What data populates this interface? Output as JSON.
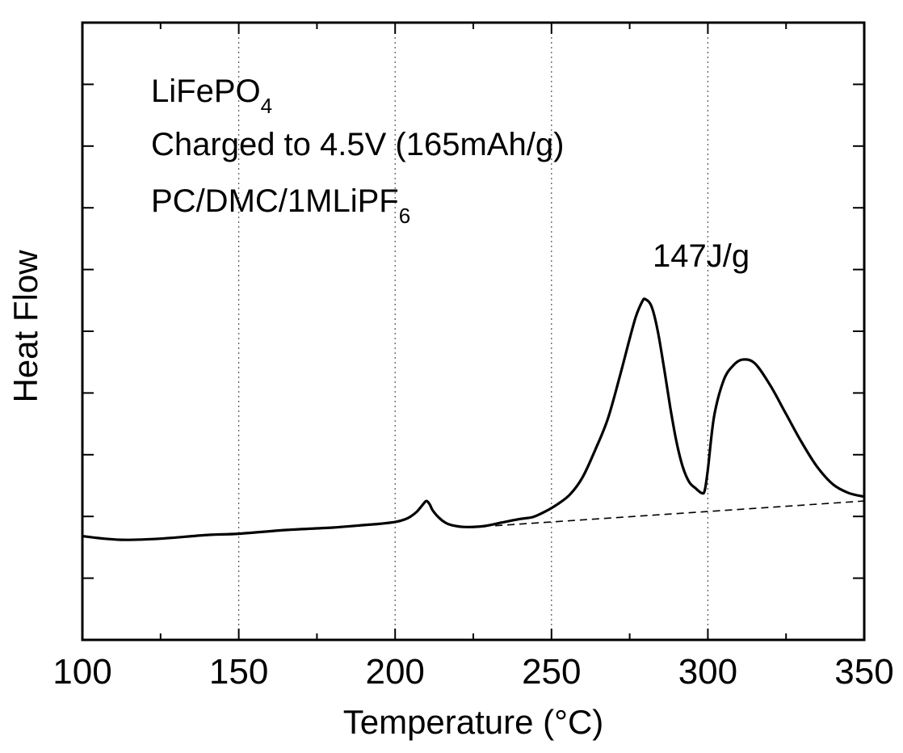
{
  "chart_data": {
    "type": "line",
    "xlabel": "Temperature (°C)",
    "ylabel": "Heat Flow",
    "xlim": [
      100,
      350
    ],
    "ylim": [
      0,
      10
    ],
    "xticks": [
      100,
      150,
      200,
      250,
      300,
      350
    ],
    "y_ticks_count": 10,
    "x_minor_ticks": [
      125,
      175,
      225,
      275,
      325
    ],
    "grid": "vertical dotted at 150, 200, 250, 300",
    "annotations": {
      "line1_main": "LiFePO",
      "line1_sub": "4",
      "line2": "Charged to 4.5V (165mAh/g)",
      "line3_main": "PC/DMC/1MLiPF",
      "line3_sub": "6",
      "peak_label": "147J/g"
    },
    "series": [
      {
        "style": "solid",
        "x": [
          100,
          107,
          114,
          125,
          140,
          150,
          165,
          180,
          190,
          195,
          200,
          203,
          205,
          207,
          209,
          210,
          211,
          212,
          214,
          216,
          218,
          222,
          228,
          234,
          240,
          244,
          248,
          252,
          256,
          260,
          264,
          268,
          272,
          275,
          277,
          279,
          280,
          282,
          284,
          286,
          288,
          290,
          292,
          294,
          296,
          298,
          299,
          300,
          302,
          305,
          308,
          311,
          315,
          320,
          325,
          330,
          335,
          340,
          345,
          350
        ],
        "y": [
          1.68,
          1.64,
          1.62,
          1.64,
          1.7,
          1.72,
          1.78,
          1.82,
          1.86,
          1.88,
          1.91,
          1.95,
          2.0,
          2.08,
          2.2,
          2.25,
          2.2,
          2.1,
          1.98,
          1.9,
          1.86,
          1.83,
          1.84,
          1.9,
          1.96,
          1.99,
          2.08,
          2.2,
          2.36,
          2.64,
          3.08,
          3.58,
          4.3,
          4.88,
          5.24,
          5.48,
          5.52,
          5.4,
          5.0,
          4.4,
          3.76,
          3.2,
          2.8,
          2.56,
          2.46,
          2.38,
          2.42,
          2.76,
          3.62,
          4.2,
          4.44,
          4.54,
          4.48,
          4.12,
          3.66,
          3.2,
          2.8,
          2.52,
          2.38,
          2.32
        ]
      },
      {
        "style": "dashed",
        "x": [
          232,
          350
        ],
        "y": [
          1.85,
          2.25
        ]
      }
    ]
  }
}
